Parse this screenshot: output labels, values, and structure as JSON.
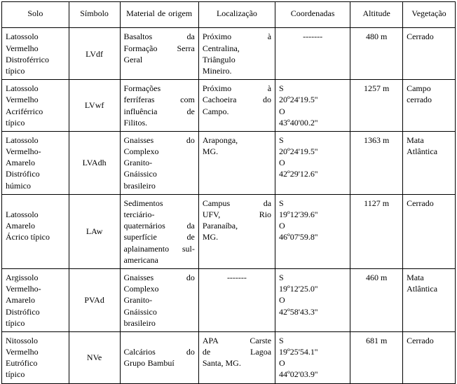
{
  "headers": {
    "solo": "Solo",
    "simbolo": "Símbolo",
    "material": "Material de origem",
    "local": "Localização",
    "coord": "Coordenadas",
    "alt": "Altitude",
    "veg": "Vegetação"
  },
  "rows": [
    {
      "solo_lines": [
        "Latossolo",
        "Vermelho",
        "Distroférrico",
        "típico"
      ],
      "simbolo": "LVdf",
      "material_lines": [
        {
          "t": "Basaltos da",
          "cls": "justify"
        },
        {
          "t": "Formação Serra",
          "cls": "justify"
        },
        {
          "t": "Geral",
          "cls": ""
        }
      ],
      "local_lines": [
        {
          "t": "Próximo à",
          "cls": "justify"
        },
        {
          "t": "Centralina,",
          "cls": ""
        },
        {
          "t": "Triângulo",
          "cls": ""
        },
        {
          "t": "Mineiro.",
          "cls": ""
        }
      ],
      "coord_lines": [
        {
          "t": "-------",
          "cls": ""
        }
      ],
      "coord_center": true,
      "alt": "480 m",
      "veg": "Cerrado"
    },
    {
      "solo_lines": [
        "Latossolo",
        "Vermelho",
        "Acriférrico",
        "típico"
      ],
      "simbolo": "LVwf",
      "material_lines": [
        {
          "t": "Formações",
          "cls": ""
        },
        {
          "t": "ferríferas com",
          "cls": "justify"
        },
        {
          "t": "influência de",
          "cls": "justify"
        },
        {
          "t": "Filitos.",
          "cls": ""
        }
      ],
      "local_lines": [
        {
          "t": "Próximo à",
          "cls": "justify"
        },
        {
          "t": "Cachoeira do",
          "cls": "justify"
        },
        {
          "t": "Campo.",
          "cls": ""
        }
      ],
      "coord_lines": [
        {
          "t": "S",
          "cls": ""
        },
        {
          "t": "20º24'19.5''",
          "cls": ""
        },
        {
          "t": "O",
          "cls": ""
        },
        {
          "t": "43º40'00.2''",
          "cls": ""
        }
      ],
      "coord_center": false,
      "alt": "1257 m",
      "veg": "Campo cerrado"
    },
    {
      "solo_lines": [
        "Latossolo",
        "Vermelho-",
        "Amarelo",
        "Distrófico",
        "húmico"
      ],
      "simbolo": "LVAdh",
      "material_lines": [
        {
          "t": "Gnaisses do",
          "cls": "justify"
        },
        {
          "t": "Complexo",
          "cls": ""
        },
        {
          "t": "Granito-",
          "cls": ""
        },
        {
          "t": "Gnáissico",
          "cls": ""
        },
        {
          "t": "brasileiro",
          "cls": ""
        }
      ],
      "local_lines": [
        {
          "t": "Araponga,",
          "cls": ""
        },
        {
          "t": "MG.",
          "cls": ""
        }
      ],
      "coord_lines": [
        {
          "t": "S",
          "cls": ""
        },
        {
          "t": "20º24'19.5''",
          "cls": ""
        },
        {
          "t": "O",
          "cls": ""
        },
        {
          "t": "42º29'12.6''",
          "cls": ""
        }
      ],
      "coord_center": false,
      "alt": "1363 m",
      "veg": "Mata Atlântica"
    },
    {
      "solo_lines": [
        "",
        "Latossolo",
        "Amarelo",
        "Ácrico típico"
      ],
      "simbolo": "LAw",
      "material_lines": [
        {
          "t": "Sedimentos",
          "cls": ""
        },
        {
          "t": "terciário-",
          "cls": ""
        },
        {
          "t": "quaternários da",
          "cls": "justify"
        },
        {
          "t": "superfície de",
          "cls": "justify"
        },
        {
          "t": "aplainamento sul-",
          "cls": "justify"
        },
        {
          "t": "americana",
          "cls": ""
        }
      ],
      "local_lines": [
        {
          "t": "Campus da",
          "cls": "justify"
        },
        {
          "t": "UFV, Rio",
          "cls": "justify"
        },
        {
          "t": "Paranaíba,",
          "cls": ""
        },
        {
          "t": "MG.",
          "cls": ""
        }
      ],
      "coord_lines": [
        {
          "t": "S",
          "cls": ""
        },
        {
          "t": "19º12'39.6''",
          "cls": ""
        },
        {
          "t": "O",
          "cls": ""
        },
        {
          "t": "46º07'59.8''",
          "cls": ""
        }
      ],
      "coord_center": false,
      "alt": "1127 m",
      "veg": "Cerrado"
    },
    {
      "solo_lines": [
        "Argissolo",
        "Vermelho-",
        "Amarelo",
        "Distrófico",
        "típico"
      ],
      "simbolo": "PVAd",
      "material_lines": [
        {
          "t": "Gnaisses do",
          "cls": "justify"
        },
        {
          "t": "Complexo",
          "cls": ""
        },
        {
          "t": "Granito-",
          "cls": ""
        },
        {
          "t": "Gnáissico",
          "cls": ""
        },
        {
          "t": "brasileiro",
          "cls": ""
        }
      ],
      "local_lines": [
        {
          "t": "-------",
          "cls": ""
        }
      ],
      "coord_lines": [
        {
          "t": "S",
          "cls": ""
        },
        {
          "t": "19º12'25.0''",
          "cls": ""
        },
        {
          "t": "O",
          "cls": ""
        },
        {
          "t": "42º58'43.3''",
          "cls": ""
        }
      ],
      "coord_center": false,
      "alt": "460 m",
      "veg": "Mata Atlântica"
    },
    {
      "solo_lines": [
        "Nitossolo",
        "Vermelho",
        "Eutrófico",
        "típico"
      ],
      "simbolo": "NVe",
      "material_lines": [
        {
          "t": "",
          "cls": ""
        },
        {
          "t": "Calcários do",
          "cls": "justify"
        },
        {
          "t": "Grupo Bambuí",
          "cls": ""
        }
      ],
      "local_lines": [
        {
          "t": "APA Carste",
          "cls": "justify"
        },
        {
          "t": "de Lagoa",
          "cls": "justify"
        },
        {
          "t": "Santa, MG.",
          "cls": ""
        }
      ],
      "coord_lines": [
        {
          "t": "S",
          "cls": ""
        },
        {
          "t": "19º25'54.1''",
          "cls": ""
        },
        {
          "t": "O",
          "cls": ""
        },
        {
          "t": "44º02'03.9''",
          "cls": ""
        }
      ],
      "coord_center": false,
      "alt": "681 m",
      "veg": "Cerrado"
    }
  ]
}
